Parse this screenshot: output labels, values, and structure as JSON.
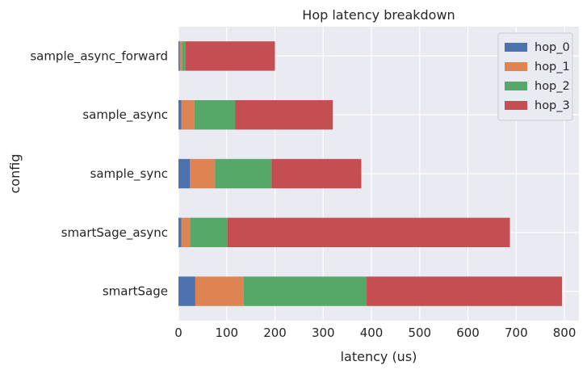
{
  "chart_data": {
    "type": "bar",
    "orientation": "horizontal",
    "stacked": true,
    "title": "Hop latency breakdown",
    "xlabel": "latency (us)",
    "ylabel": "config",
    "xlim": [
      0,
      830
    ],
    "xticks": [
      0,
      100,
      200,
      300,
      400,
      500,
      600,
      700,
      800
    ],
    "grid": true,
    "legend_position": "top-right",
    "categories": [
      "sample_async_forward",
      "sample_async",
      "sample_sync",
      "smartSage_async",
      "smartSage"
    ],
    "series": [
      {
        "name": "hop_0",
        "color": "#4c72b0",
        "values": [
          3,
          6,
          24,
          6,
          35
        ]
      },
      {
        "name": "hop_1",
        "color": "#dd8452",
        "values": [
          4,
          27,
          52,
          18,
          100
        ]
      },
      {
        "name": "hop_2",
        "color": "#55a868",
        "values": [
          8,
          85,
          117,
          78,
          255
        ]
      },
      {
        "name": "hop_3",
        "color": "#c44e52",
        "values": [
          185,
          202,
          186,
          585,
          405
        ]
      }
    ]
  }
}
